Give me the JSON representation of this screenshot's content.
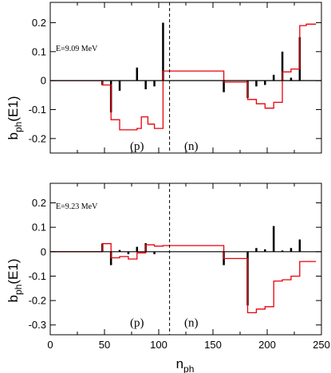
{
  "chart_data": [
    {
      "type": "line",
      "panel": "upper",
      "annotation": "E=9.09 MeV",
      "ylabel": "b_ph(E1)",
      "xlim": [
        0,
        250
      ],
      "ylim": [
        -0.25,
        0.27
      ],
      "yticks": [
        -0.2,
        -0.1,
        0,
        0.1,
        0.2
      ],
      "divider_x": 110,
      "region_labels": [
        {
          "text": "(p)",
          "x": 80,
          "y": -0.225
        },
        {
          "text": "(n)",
          "x": 130,
          "y": -0.225
        }
      ],
      "bars": [
        {
          "x": 48,
          "y": -0.015
        },
        {
          "x": 56,
          "y": -0.11
        },
        {
          "x": 64,
          "y": -0.035
        },
        {
          "x": 80,
          "y": 0.045
        },
        {
          "x": 88,
          "y": -0.03
        },
        {
          "x": 96,
          "y": -0.02
        },
        {
          "x": 104,
          "y": 0.2
        },
        {
          "x": 160,
          "y": -0.04
        },
        {
          "x": 182,
          "y": -0.06
        },
        {
          "x": 190,
          "y": -0.02
        },
        {
          "x": 198,
          "y": -0.015
        },
        {
          "x": 206,
          "y": 0.02
        },
        {
          "x": 214,
          "y": 0.1
        },
        {
          "x": 222,
          "y": 0.01
        },
        {
          "x": 230,
          "y": 0.15
        }
      ],
      "cumulative": [
        [
          0,
          0
        ],
        [
          48,
          0
        ],
        [
          48,
          -0.015
        ],
        [
          56,
          -0.015
        ],
        [
          56,
          -0.135
        ],
        [
          64,
          -0.135
        ],
        [
          64,
          -0.17
        ],
        [
          80,
          -0.17
        ],
        [
          80,
          -0.165
        ],
        [
          84,
          -0.165
        ],
        [
          84,
          -0.125
        ],
        [
          90,
          -0.125
        ],
        [
          90,
          -0.15
        ],
        [
          96,
          -0.15
        ],
        [
          96,
          -0.165
        ],
        [
          104,
          -0.165
        ],
        [
          104,
          0.033
        ],
        [
          160,
          0.033
        ],
        [
          160,
          -0.005
        ],
        [
          182,
          -0.005
        ],
        [
          182,
          -0.065
        ],
        [
          190,
          -0.065
        ],
        [
          190,
          -0.08
        ],
        [
          198,
          -0.08
        ],
        [
          198,
          -0.095
        ],
        [
          206,
          -0.095
        ],
        [
          206,
          -0.075
        ],
        [
          214,
          -0.075
        ],
        [
          214,
          0.03
        ],
        [
          222,
          0.03
        ],
        [
          222,
          0.04
        ],
        [
          230,
          0.04
        ],
        [
          230,
          0.19
        ],
        [
          236,
          0.19
        ],
        [
          236,
          0.195
        ],
        [
          245,
          0.195
        ]
      ]
    },
    {
      "type": "line",
      "panel": "lower",
      "annotation": "E=9.23 MeV",
      "ylabel": "b_ph(E1)",
      "xlabel": "n_ph",
      "xlim": [
        0,
        250
      ],
      "ylim": [
        -0.34,
        0.28
      ],
      "xticks": [
        0,
        50,
        100,
        150,
        200,
        250
      ],
      "yticks": [
        -0.3,
        -0.2,
        -0.1,
        0,
        0.1,
        0.2
      ],
      "divider_x": 110,
      "region_labels": [
        {
          "text": "(p)",
          "x": 80,
          "y": -0.29
        },
        {
          "text": "(n)",
          "x": 130,
          "y": -0.29
        }
      ],
      "bars": [
        {
          "x": 48,
          "y": 0.033
        },
        {
          "x": 56,
          "y": -0.055
        },
        {
          "x": 64,
          "y": 0.007
        },
        {
          "x": 72,
          "y": -0.01
        },
        {
          "x": 80,
          "y": 0.02
        },
        {
          "x": 88,
          "y": 0.035
        },
        {
          "x": 96,
          "y": -0.01
        },
        {
          "x": 160,
          "y": -0.055
        },
        {
          "x": 182,
          "y": -0.22
        },
        {
          "x": 190,
          "y": 0.015
        },
        {
          "x": 198,
          "y": 0.01
        },
        {
          "x": 206,
          "y": 0.105
        },
        {
          "x": 214,
          "y": 0.005
        },
        {
          "x": 222,
          "y": 0.015
        },
        {
          "x": 230,
          "y": 0.05
        }
      ],
      "cumulative": [
        [
          0,
          0
        ],
        [
          48,
          0
        ],
        [
          48,
          0.033
        ],
        [
          56,
          0.033
        ],
        [
          56,
          -0.025
        ],
        [
          64,
          -0.025
        ],
        [
          64,
          -0.02
        ],
        [
          72,
          -0.02
        ],
        [
          72,
          -0.03
        ],
        [
          80,
          -0.03
        ],
        [
          80,
          -0.005
        ],
        [
          88,
          -0.005
        ],
        [
          88,
          0.028
        ],
        [
          96,
          0.028
        ],
        [
          96,
          0.023
        ],
        [
          104,
          0.023
        ],
        [
          104,
          0.025
        ],
        [
          160,
          0.025
        ],
        [
          160,
          -0.028
        ],
        [
          182,
          -0.028
        ],
        [
          182,
          -0.25
        ],
        [
          190,
          -0.25
        ],
        [
          190,
          -0.235
        ],
        [
          198,
          -0.235
        ],
        [
          198,
          -0.225
        ],
        [
          206,
          -0.225
        ],
        [
          206,
          -0.12
        ],
        [
          214,
          -0.12
        ],
        [
          214,
          -0.115
        ],
        [
          222,
          -0.115
        ],
        [
          222,
          -0.1
        ],
        [
          230,
          -0.1
        ],
        [
          230,
          -0.04
        ],
        [
          245,
          -0.04
        ]
      ]
    }
  ]
}
